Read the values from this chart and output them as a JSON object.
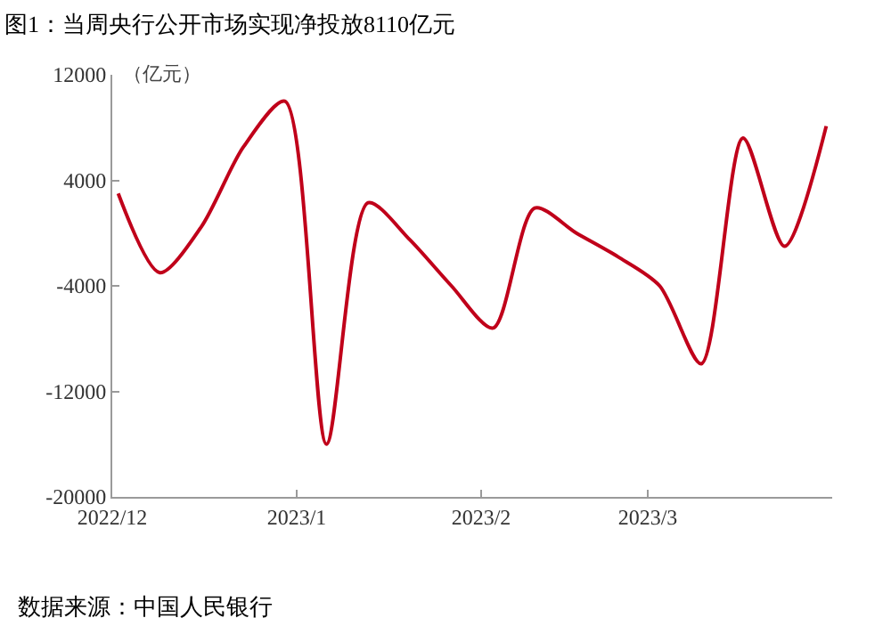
{
  "chart_data": {
    "type": "line",
    "title": "图1：当周央行公开市场实现净投放8110亿元",
    "ylabel": "（亿元）",
    "x": [
      "2022-12-02",
      "2022-12-09",
      "2022-12-16",
      "2022-12-23",
      "2022-12-30",
      "2023-01-06",
      "2023-01-13",
      "2023-01-20",
      "2023-01-27",
      "2023-02-03",
      "2023-02-10",
      "2023-02-17",
      "2023-02-24",
      "2023-03-03",
      "2023-03-10",
      "2023-03-17",
      "2023-03-24",
      "2023-03-31"
    ],
    "series": [
      {
        "color": "#c0001a",
        "values": [
          3000,
          -3000,
          500,
          6500,
          10000,
          -16000,
          2300,
          -500,
          -4000,
          -7200,
          1900,
          0,
          -1800,
          -4000,
          -9900,
          7200,
          -1000,
          8110
        ]
      }
    ],
    "xlim": [
      "2022-12-01",
      "2023-04-01"
    ],
    "xticks": [
      {
        "value": "2022-12-01",
        "label": "2022/12"
      },
      {
        "value": "2023-01-01",
        "label": "2023/1"
      },
      {
        "value": "2023-02-01",
        "label": "2023/2"
      },
      {
        "value": "2023-03-01",
        "label": "2023/3"
      }
    ],
    "ylim": [
      -20000,
      12000
    ],
    "yticks": [
      -20000,
      -12000,
      -4000,
      4000,
      12000
    ],
    "legend": false,
    "marker": "none",
    "line_style": "solid",
    "annotations": [
      "数据来源：中国人民银行"
    ]
  }
}
